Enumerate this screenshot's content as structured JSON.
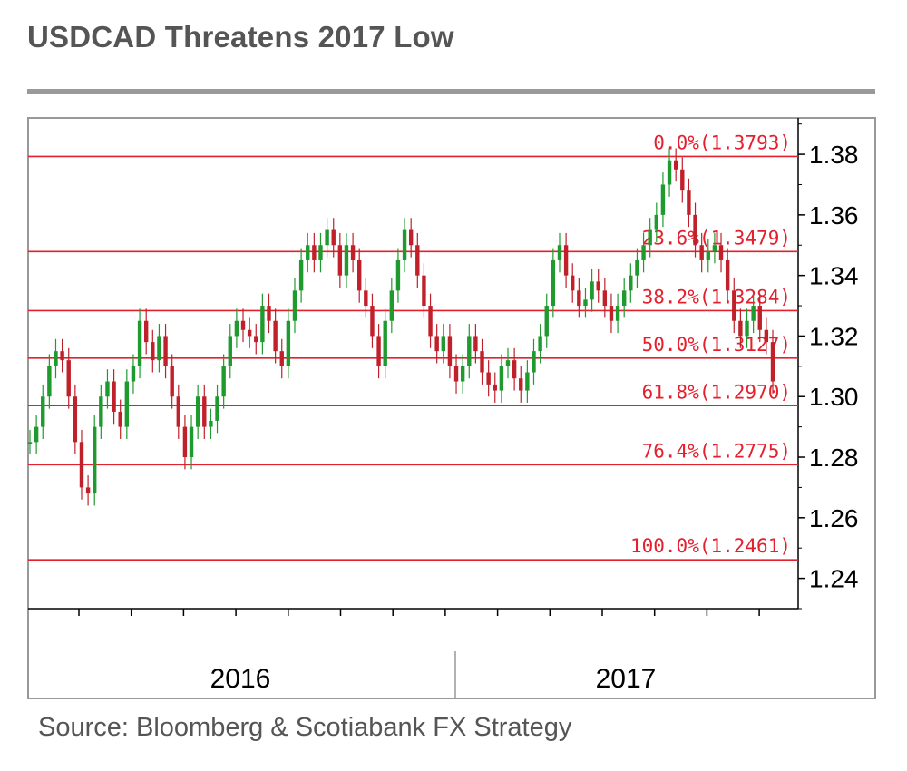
{
  "title": "USDCAD Threatens 2017 Low",
  "source": "Source: Bloomberg & Scotiabank FX Strategy",
  "colors": {
    "up": "#1f9a2e",
    "down": "#c0202a",
    "fib": "#e4202e",
    "text": "#555555"
  },
  "chart_data": {
    "type": "line",
    "title": "USDCAD Threatens 2017 Low",
    "xlabel": "",
    "ylabel": "",
    "ylim": [
      1.23,
      1.392
    ],
    "yticks": [
      1.24,
      1.26,
      1.28,
      1.3,
      1.32,
      1.34,
      1.36,
      1.38
    ],
    "year_labels": [
      "2016",
      "2017"
    ],
    "grid": false,
    "fib_levels": [
      {
        "label": "0.0%(1.3793)",
        "value": 1.3793
      },
      {
        "label": "23.6%(1.3479)",
        "value": 1.3479
      },
      {
        "label": "38.2%(1.3284)",
        "value": 1.3284
      },
      {
        "label": "50.0%(1.3127)",
        "value": 1.3127
      },
      {
        "label": "61.8%(1.2970)",
        "value": 1.297
      },
      {
        "label": "76.4%(1.2775)",
        "value": 1.2775
      },
      {
        "label": "100.0%(1.2461)",
        "value": 1.2461
      }
    ],
    "series": [
      {
        "values": [
          1.285,
          1.29,
          1.3,
          1.31,
          1.315,
          1.312,
          1.3,
          1.285,
          1.27,
          1.268,
          1.29,
          1.3,
          1.305,
          1.295,
          1.29,
          1.305,
          1.31,
          1.325,
          1.318,
          1.312,
          1.32,
          1.31,
          1.3,
          1.29,
          1.28,
          1.29,
          1.3,
          1.29,
          1.292,
          1.3,
          1.31,
          1.32,
          1.325,
          1.322,
          1.32,
          1.318,
          1.33,
          1.325,
          1.315,
          1.31,
          1.325,
          1.335,
          1.345,
          1.35,
          1.345,
          1.35,
          1.355,
          1.35,
          1.34,
          1.35,
          1.345,
          1.335,
          1.33,
          1.32,
          1.31,
          1.325,
          1.335,
          1.345,
          1.355,
          1.35,
          1.34,
          1.33,
          1.32,
          1.315,
          1.32,
          1.31,
          1.305,
          1.31,
          1.32,
          1.315,
          1.308,
          1.304,
          1.302,
          1.31,
          1.312,
          1.306,
          1.302,
          1.308,
          1.315,
          1.32,
          1.33,
          1.345,
          1.35,
          1.34,
          1.335,
          1.33,
          1.332,
          1.338,
          1.335,
          1.33,
          1.325,
          1.33,
          1.335,
          1.34,
          1.345,
          1.35,
          1.355,
          1.36,
          1.37,
          1.378,
          1.375,
          1.368,
          1.36,
          1.35,
          1.345,
          1.348,
          1.35,
          1.345,
          1.335,
          1.325,
          1.32,
          1.325,
          1.33,
          1.322,
          1.318,
          1.305
        ]
      }
    ]
  }
}
